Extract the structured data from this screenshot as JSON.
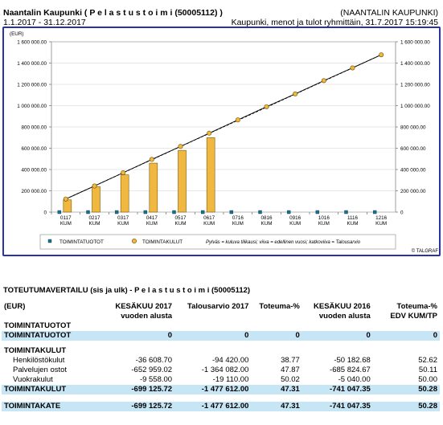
{
  "header": {
    "title": "Naantalin Kaupunki ( P e l a s t u s t o i m i (50005112) )",
    "org": "(NAANTALIN KAUPUNKI)",
    "period": "1.1.2017 - 31.12.2017",
    "report": "Kaupunki, menot ja tulot ryhmittäin, 31.7.2017 15:19:45"
  },
  "chart_data": {
    "type": "bar",
    "unit_label": "(EUR)",
    "categories": [
      "0117 KUM",
      "0217 KUM",
      "0317 KUM",
      "0417 KUM",
      "0517 KUM",
      "0617 KUM",
      "0716 KUM",
      "0816 KUM",
      "0916 KUM",
      "1016 KUM",
      "1116 KUM",
      "1216 KUM"
    ],
    "ylim": [
      0,
      1600000
    ],
    "yticks": [
      "1 600 000.00",
      "1 400 000.00",
      "1 200 000.00",
      "1 000 000.00",
      "800 000.00",
      "600 000.00",
      "400 000.00",
      "200 000.00",
      "0"
    ],
    "series": [
      {
        "name": "TOIMINTATUOTOT",
        "color": "#1f6e8c",
        "values": [
          0,
          0,
          0,
          0,
          0,
          0,
          0,
          0,
          0,
          0,
          0,
          0
        ]
      },
      {
        "name": "TOIMINTAKULUT",
        "color": "#f0b840",
        "values": [
          115000,
          240000,
          350000,
          460000,
          580000,
          699126,
          null,
          null,
          null,
          null,
          null,
          null
        ]
      }
    ],
    "prev_year_points": [
      123000,
      245000,
      370000,
      495000,
      617000,
      741047,
      866000,
      990000,
      1110000,
      1235000,
      1355000,
      1477612
    ],
    "budget_line": [
      123000,
      1477612
    ],
    "legend_note": "Pylväs = kuluva tilikausi; viiva = edellinen vuosi; katkoviiva = Talousarvio",
    "credit": "© TALGRAF",
    "colors": {
      "frame": "#2a33a6",
      "bar": "#f0b840",
      "bar_edge": "#7a5a00",
      "dot": "#f0b840",
      "tuotot": "#1f6e8c"
    }
  },
  "table": {
    "title": "TOTEUTUMAVERTAILU (sis ja ulk) - P e l a s t u s t o i m i (50005112)",
    "headers": [
      "(EUR)",
      "KESÄKUU 2017\nvuoden alusta",
      "Talousarvio 2017",
      "Toteuma-%",
      "KESÄKUU 2016\nvuoden alusta",
      "Toteuma-%\nEDV KUM/TP"
    ],
    "rows": [
      {
        "label": "TOIMINTATUOTOT",
        "bold": true,
        "hl": false,
        "vals": [
          "",
          "",
          "",
          "",
          ""
        ]
      },
      {
        "label": "TOIMINTATUOTOT",
        "bold": true,
        "hl": true,
        "vals": [
          "0",
          "0",
          "0",
          "0",
          "0"
        ]
      },
      {
        "label": "TOIMINTAKULUT",
        "bold": true,
        "hl": false,
        "vals": [
          "",
          "",
          "",
          "",
          ""
        ]
      },
      {
        "label": "Henkilöstökulut",
        "bold": false,
        "hl": false,
        "vals": [
          "-36 608.70",
          "-94 420.00",
          "38.77",
          "-50 182.68",
          "52.62"
        ]
      },
      {
        "label": "Palvelujen ostot",
        "bold": false,
        "hl": false,
        "vals": [
          "-652 959.02",
          "-1 364 082.00",
          "47.87",
          "-685 824.67",
          "50.11"
        ]
      },
      {
        "label": "Vuokrakulut",
        "bold": false,
        "hl": false,
        "vals": [
          "-9 558.00",
          "-19 110.00",
          "50.02",
          "-5 040.00",
          "50.00"
        ]
      },
      {
        "label": "TOIMINTAKULUT",
        "bold": true,
        "hl": true,
        "vals": [
          "-699 125.72",
          "-1 477 612.00",
          "47.31",
          "-741 047.35",
          "50.28"
        ]
      },
      {
        "label": "TOIMINTAKATE",
        "bold": true,
        "hl": true,
        "vals": [
          "-699 125.72",
          "-1 477 612.00",
          "47.31",
          "-741 047.35",
          "50.28"
        ]
      }
    ]
  }
}
